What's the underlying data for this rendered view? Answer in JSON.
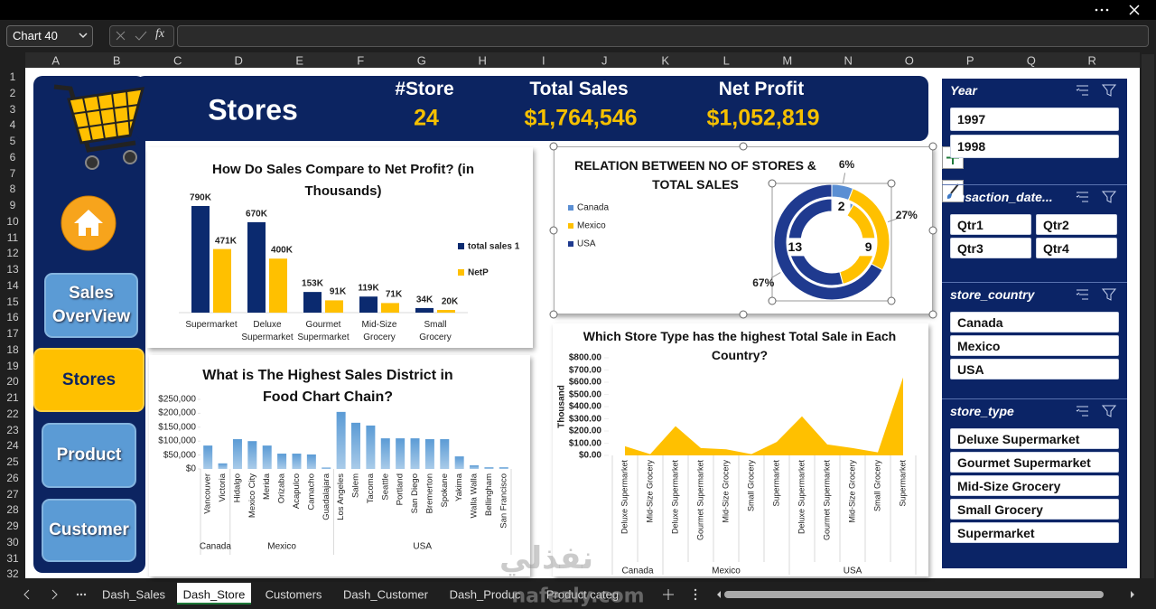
{
  "app": {
    "name_box": "Chart 40",
    "fx": "fx",
    "columns": [
      "A",
      "B",
      "C",
      "D",
      "E",
      "F",
      "G",
      "H",
      "I",
      "J",
      "K",
      "L",
      "M",
      "N",
      "O",
      "P",
      "Q",
      "R"
    ],
    "rows": [
      1,
      2,
      3,
      4,
      5,
      6,
      7,
      8,
      9,
      10,
      11,
      12,
      13,
      14,
      15,
      16,
      17,
      18,
      19,
      20,
      21,
      22,
      23,
      24,
      25,
      26,
      27,
      28,
      29,
      30,
      31,
      32
    ],
    "sheet_tabs": [
      {
        "label": "Dash_Sales"
      },
      {
        "label": "Dash_Store",
        "active": true
      },
      {
        "label": "Customers"
      },
      {
        "label": "Dash_Customer"
      },
      {
        "label": "Dash_Produc"
      },
      {
        "label": "Product categ"
      }
    ]
  },
  "watermark": [
    "نفذلي",
    "nafezly.com"
  ],
  "header": {
    "title": "Stores",
    "kpis": [
      {
        "label": "#Store",
        "value": "24"
      },
      {
        "label": "Total Sales",
        "value": "$1,764,546"
      },
      {
        "label": "Net Profit",
        "value": "$1,052,819"
      }
    ]
  },
  "nav": [
    "Sales OverView",
    "Stores",
    "Product",
    "Customer"
  ],
  "slicers": [
    {
      "title": "Year",
      "items": [
        "1997",
        "1998"
      ]
    },
    {
      "title": "ansaction_date...",
      "items": [
        "Qtr1",
        "Qtr2",
        "Qtr3",
        "Qtr4"
      ]
    },
    {
      "title": "store_country",
      "items": [
        "Canada",
        "Mexico",
        "USA"
      ]
    },
    {
      "title": "store_type",
      "items": [
        "Deluxe Supermarket",
        "Gourmet Supermarket",
        "Mid-Size Grocery",
        "Small Grocery",
        "Supermarket"
      ]
    }
  ],
  "chart_data": [
    {
      "type": "bar",
      "title": "How Do Sales Compare to Net Profit? (in Thousands)",
      "categories": [
        "Supermarket",
        "Deluxe Supermarket",
        "Gourmet Supermarket",
        "Mid-Size Grocery",
        "Small Grocery"
      ],
      "series": [
        {
          "name": "total sales 1",
          "color": "#0b2a6f",
          "values": [
            790,
            670,
            153,
            119,
            34
          ],
          "value_labels": [
            "790K",
            "670K",
            "153K",
            "119K",
            "34K"
          ]
        },
        {
          "name": "NetP",
          "color": "#ffc000",
          "values": [
            471,
            400,
            91,
            71,
            20
          ],
          "value_labels": [
            "471K",
            "400K",
            "91K",
            "71K",
            "20K"
          ]
        }
      ],
      "ylim": [
        0,
        850
      ]
    },
    {
      "type": "donut",
      "title": "RELATION BETWEEN NO OF STORES & TOTAL SALES",
      "categories": [
        "Canada",
        "Mexico",
        "USA"
      ],
      "colors": [
        "#5b8fd3",
        "#ffc000",
        "#1f3a8f"
      ],
      "series": [
        {
          "values": [
            2,
            9,
            13
          ]
        },
        {
          "values": [
            6,
            27,
            67
          ],
          "value_labels": [
            "6%",
            "27%",
            "67%"
          ]
        }
      ]
    },
    {
      "type": "bar",
      "title": "What is The Highest Sales District in Food Chart Chain?",
      "color": "#5b9bd5",
      "ylim": [
        0,
        250000
      ],
      "yticks": [
        {
          "value": 0,
          "label": "$0"
        },
        {
          "value": 50000,
          "label": "$50,000"
        },
        {
          "value": 100000,
          "label": "$100,000"
        },
        {
          "value": 150000,
          "label": "$150,000"
        },
        {
          "value": 200000,
          "label": "$200,000"
        },
        {
          "value": 250000,
          "label": "$250,000"
        }
      ],
      "groups": [
        {
          "name": "Canada",
          "categories": [
            "Vancouver",
            "Victoria"
          ],
          "values": [
            84000,
            20000
          ]
        },
        {
          "name": "Mexico",
          "categories": [
            "Hidalgo",
            "Mexico City",
            "Merida",
            "Orizaba",
            "Acapulco",
            "Camacho",
            "Guadalajara"
          ],
          "values": [
            107000,
            100000,
            84000,
            55000,
            55000,
            52000,
            5000
          ]
        },
        {
          "name": "USA",
          "categories": [
            "Los Angeles",
            "Salem",
            "Tacoma",
            "Seattle",
            "Portland",
            "San Diego",
            "Bremerton",
            "Spokane",
            "Yakima",
            "Walla Walla",
            "Bellingham",
            "San Francisco"
          ],
          "values": [
            205000,
            166000,
            156000,
            110000,
            110000,
            110000,
            107000,
            107000,
            45000,
            13000,
            6000,
            6000
          ]
        }
      ]
    },
    {
      "type": "area",
      "title": "Which Store Type has the highest Total Sale in Each Country?",
      "y_label": "Thousand",
      "color": "#ffc000",
      "ylim": [
        0,
        800
      ],
      "yticks": [
        {
          "value": 0,
          "label": "$0.00"
        },
        {
          "value": 100,
          "label": "$100.00"
        },
        {
          "value": 200,
          "label": "$200.00"
        },
        {
          "value": 300,
          "label": "$300.00"
        },
        {
          "value": 400,
          "label": "$400.00"
        },
        {
          "value": 500,
          "label": "$500.00"
        },
        {
          "value": 600,
          "label": "$600.00"
        },
        {
          "value": 700,
          "label": "$700.00"
        },
        {
          "value": 800,
          "label": "$800.00"
        }
      ],
      "groups": [
        {
          "name": "Canada",
          "categories": [
            "Deluxe Supermarket",
            "Mid-Size Grocery"
          ],
          "values": [
            75,
            10
          ]
        },
        {
          "name": "Mexico",
          "categories": [
            "Deluxe Supermarket",
            "Gourmet Supermarket",
            "Mid-Size Grocery",
            "Small Grocery",
            "Supermarket"
          ],
          "values": [
            240,
            60,
            50,
            10,
            110
          ]
        },
        {
          "name": "USA",
          "categories": [
            "Deluxe Supermarket",
            "Gourmet Supermarket",
            "Mid-Size Grocery",
            "Small Grocery",
            "Supermarket"
          ],
          "values": [
            320,
            90,
            60,
            25,
            640
          ]
        }
      ]
    }
  ]
}
